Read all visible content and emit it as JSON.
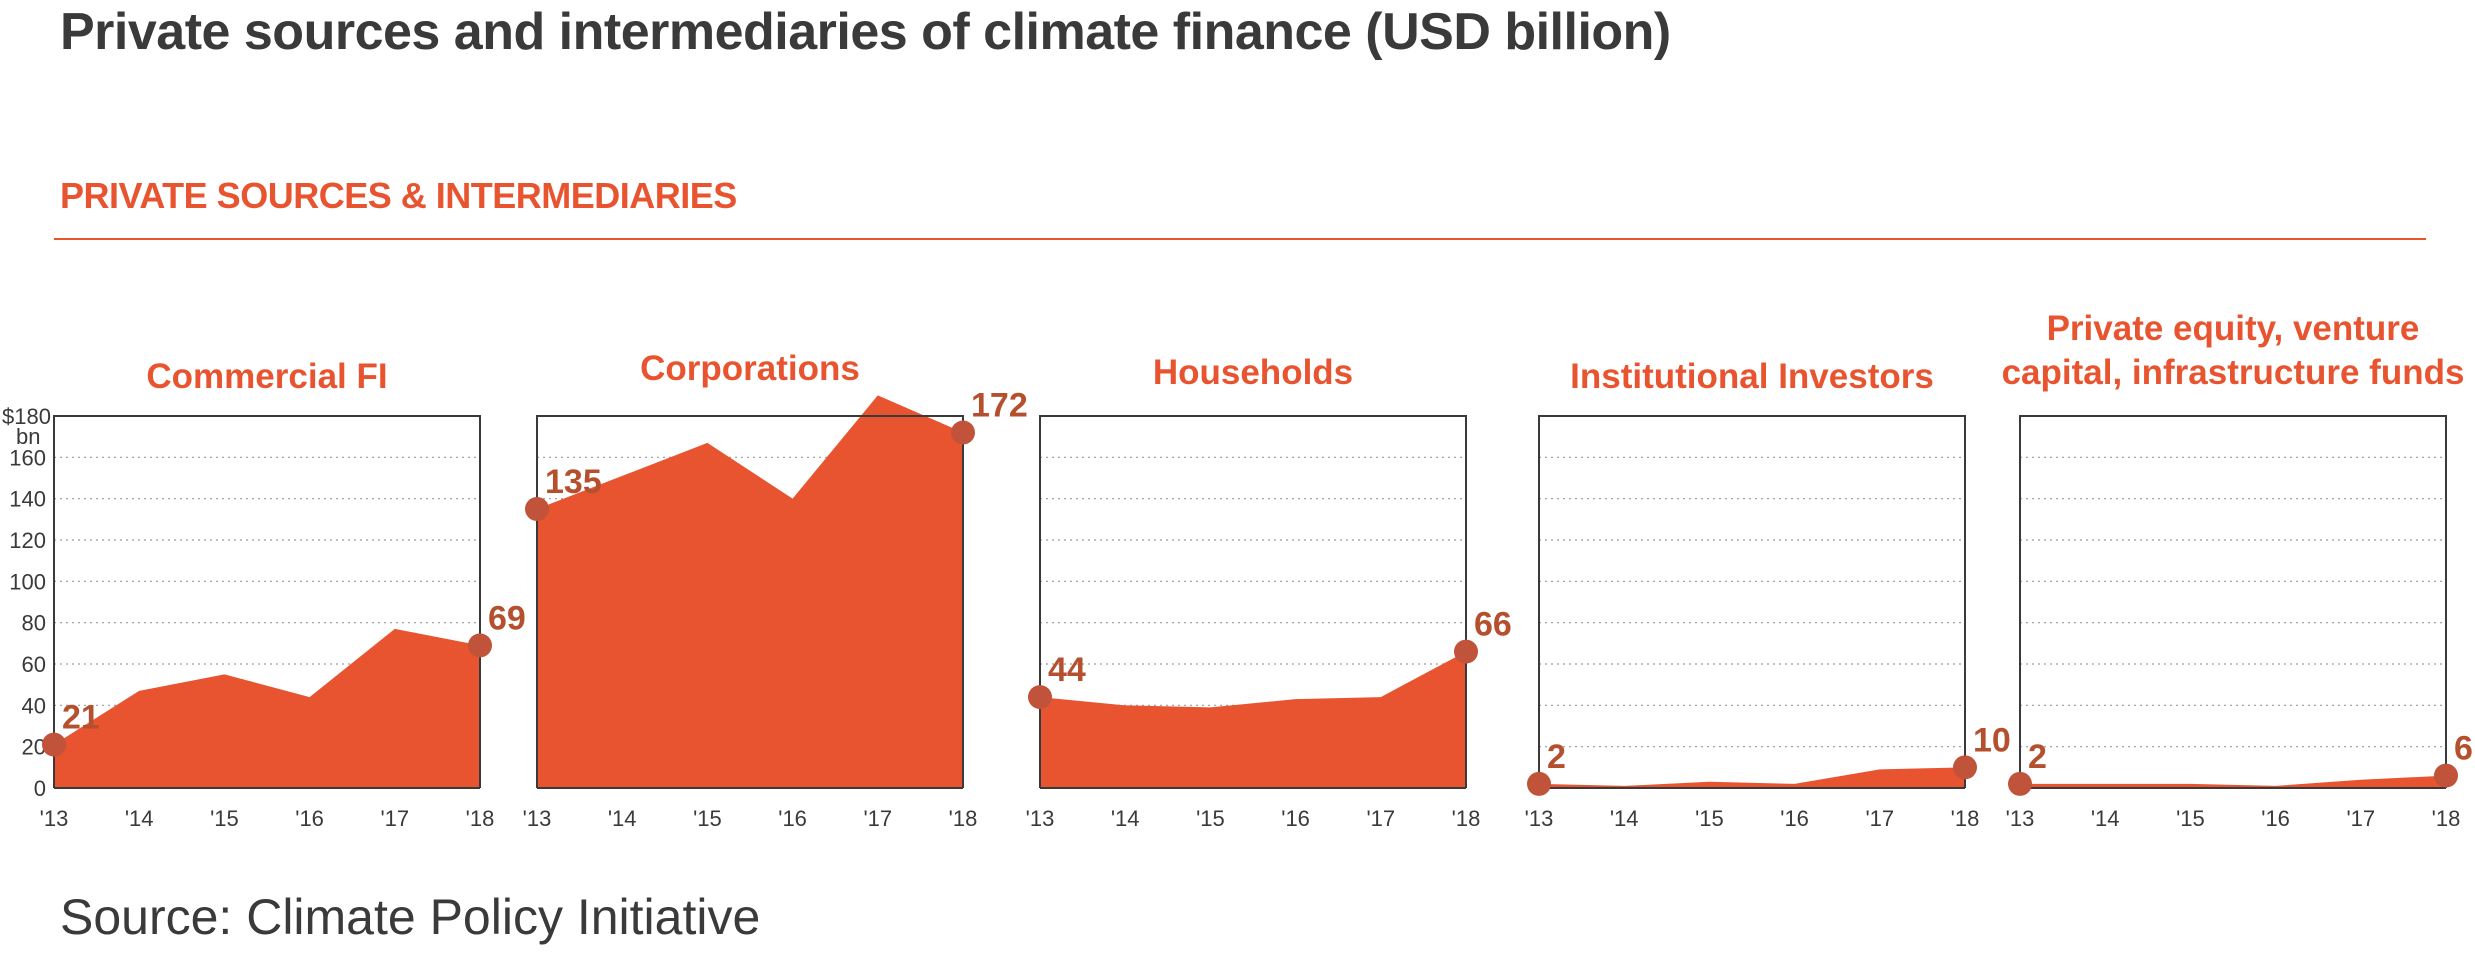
{
  "title": "Private sources and intermediaries of climate finance (USD billion)",
  "section_label": "PRIVATE SOURCES & INTERMEDIARIES",
  "source": "Source: Climate Policy Initiative",
  "colors": {
    "fill": "#e8542f",
    "marker": "#c0533a",
    "text": "#3a3a3a",
    "label": "#b5502f"
  },
  "chart_data": [
    {
      "type": "area",
      "title": [
        "Commercial FI"
      ],
      "x": [
        "'13",
        "'14",
        "'15",
        "'16",
        "'17",
        "'18"
      ],
      "values": [
        21,
        47,
        55,
        44,
        77,
        69
      ],
      "start_label": "21",
      "end_label": "69",
      "ylim": [
        0,
        180
      ],
      "yticks": [
        "0",
        "20",
        "40",
        "60",
        "80",
        "100",
        "120",
        "140",
        "160",
        "$180"
      ],
      "yunit": "bn",
      "grid": true
    },
    {
      "type": "area",
      "title": [
        "Corporations"
      ],
      "x": [
        "'13",
        "'14",
        "'15",
        "'16",
        "'17",
        "'18"
      ],
      "values": [
        135,
        151,
        167,
        140,
        190,
        172
      ],
      "start_label": "135",
      "end_label": "172",
      "ylim": [
        0,
        180
      ],
      "grid": true
    },
    {
      "type": "area",
      "title": [
        "Households"
      ],
      "x": [
        "'13",
        "'14",
        "'15",
        "'16",
        "'17",
        "'18"
      ],
      "values": [
        44,
        40,
        39,
        43,
        44,
        66
      ],
      "start_label": "44",
      "end_label": "66",
      "ylim": [
        0,
        180
      ],
      "grid": true
    },
    {
      "type": "area",
      "title": [
        "Institutional Investors"
      ],
      "x": [
        "'13",
        "'14",
        "'15",
        "'16",
        "'17",
        "'18"
      ],
      "values": [
        2,
        1,
        3,
        2,
        9,
        10
      ],
      "start_label": "2",
      "end_label": "10",
      "ylim": [
        0,
        180
      ],
      "grid": true
    },
    {
      "type": "area",
      "title": [
        "Private equity, venture",
        "capital, infrastructure funds"
      ],
      "x": [
        "'13",
        "'14",
        "'15",
        "'16",
        "'17",
        "'18"
      ],
      "values": [
        2,
        2,
        2,
        1,
        4,
        6
      ],
      "start_label": "2",
      "end_label": "6",
      "ylim": [
        0,
        180
      ],
      "grid": true
    }
  ]
}
